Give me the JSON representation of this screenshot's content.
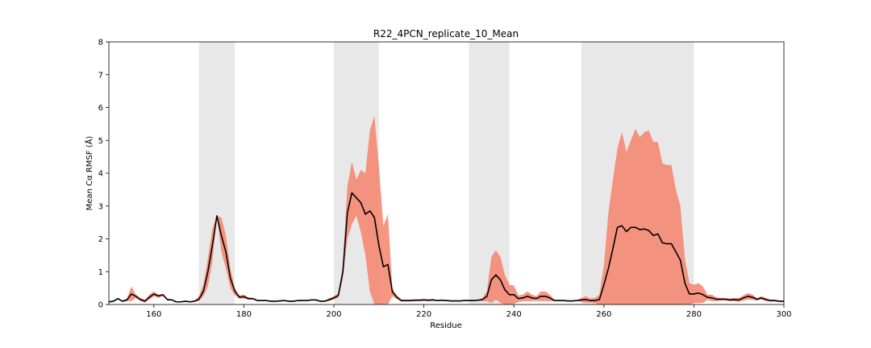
{
  "chart_data": {
    "type": "line",
    "title": "R22_4PCN_replicate_10_Mean",
    "xlabel": "Residue",
    "ylabel": "Mean Cα RMSF (Å)",
    "xlim": [
      150,
      300
    ],
    "ylim": [
      0,
      8
    ],
    "xticks": [
      160,
      180,
      200,
      220,
      240,
      260,
      280,
      300
    ],
    "yticks": [
      0,
      1,
      2,
      3,
      4,
      5,
      6,
      7,
      8
    ],
    "grid": false,
    "colors": {
      "mean_line": "#000000",
      "band": "#f4826c",
      "shade": "#d9d9d9"
    },
    "shaded_regions": [
      [
        170,
        178
      ],
      [
        200,
        210
      ],
      [
        230,
        239
      ],
      [
        255,
        280
      ]
    ],
    "series": [
      {
        "x": [
          150,
          151,
          152,
          153,
          154,
          155,
          156,
          157,
          158,
          159,
          160,
          161,
          162,
          163,
          164,
          165,
          166,
          167,
          168,
          169,
          170,
          171,
          172,
          173,
          174,
          175,
          176,
          177,
          178,
          179,
          180,
          181,
          182,
          183,
          184,
          185,
          186,
          187,
          188,
          189,
          190,
          191,
          192,
          193,
          194,
          195,
          196,
          197,
          198,
          199,
          200,
          201,
          202,
          203,
          204,
          205,
          206,
          207,
          208,
          209,
          210,
          211,
          212,
          213,
          214,
          215,
          216,
          217,
          218,
          219,
          220,
          221,
          222,
          223,
          224,
          225,
          226,
          227,
          228,
          229,
          230,
          231,
          232,
          233,
          234,
          235,
          236,
          237,
          238,
          239,
          240,
          241,
          242,
          243,
          244,
          245,
          246,
          247,
          248,
          249,
          250,
          251,
          252,
          253,
          254,
          255,
          256,
          257,
          258,
          259,
          260,
          261,
          262,
          263,
          264,
          265,
          266,
          267,
          268,
          269,
          270,
          271,
          272,
          273,
          274,
          275,
          276,
          277,
          278,
          279,
          280,
          281,
          282,
          283,
          284,
          285,
          286,
          287,
          288,
          289,
          290,
          291,
          292,
          293,
          294,
          295,
          296,
          297,
          298,
          299,
          300
        ],
        "mean": [
          0.08,
          0.1,
          0.18,
          0.1,
          0.14,
          0.32,
          0.25,
          0.15,
          0.1,
          0.22,
          0.32,
          0.26,
          0.3,
          0.15,
          0.14,
          0.08,
          0.08,
          0.1,
          0.08,
          0.1,
          0.16,
          0.4,
          1.0,
          1.8,
          2.7,
          2.1,
          1.6,
          0.8,
          0.4,
          0.22,
          0.24,
          0.18,
          0.18,
          0.12,
          0.12,
          0.12,
          0.1,
          0.1,
          0.11,
          0.12,
          0.1,
          0.1,
          0.12,
          0.12,
          0.12,
          0.14,
          0.14,
          0.1,
          0.1,
          0.15,
          0.2,
          0.28,
          1.0,
          2.8,
          3.4,
          3.25,
          3.1,
          2.75,
          2.85,
          2.65,
          1.8,
          1.15,
          1.22,
          0.38,
          0.22,
          0.12,
          0.12,
          0.12,
          0.13,
          0.13,
          0.14,
          0.13,
          0.14,
          0.12,
          0.13,
          0.12,
          0.11,
          0.11,
          0.11,
          0.12,
          0.12,
          0.12,
          0.13,
          0.15,
          0.25,
          0.75,
          0.9,
          0.75,
          0.45,
          0.3,
          0.3,
          0.18,
          0.2,
          0.25,
          0.2,
          0.18,
          0.25,
          0.25,
          0.2,
          0.12,
          0.12,
          0.12,
          0.11,
          0.11,
          0.12,
          0.14,
          0.15,
          0.12,
          0.12,
          0.15,
          0.6,
          1.1,
          1.7,
          2.35,
          2.4,
          2.22,
          2.35,
          2.35,
          2.28,
          2.3,
          2.25,
          2.1,
          2.15,
          1.88,
          1.85,
          1.85,
          1.6,
          1.35,
          0.65,
          0.32,
          0.32,
          0.35,
          0.3,
          0.22,
          0.2,
          0.16,
          0.16,
          0.16,
          0.14,
          0.15,
          0.14,
          0.2,
          0.25,
          0.22,
          0.16,
          0.2,
          0.15,
          0.12,
          0.12,
          0.1,
          0.1
        ],
        "upper": [
          0.1,
          0.12,
          0.2,
          0.12,
          0.18,
          0.55,
          0.3,
          0.2,
          0.15,
          0.3,
          0.4,
          0.3,
          0.32,
          0.18,
          0.16,
          0.1,
          0.1,
          0.12,
          0.1,
          0.12,
          0.25,
          0.6,
          1.4,
          2.3,
          2.7,
          2.65,
          2.1,
          1.1,
          0.5,
          0.28,
          0.3,
          0.22,
          0.2,
          0.14,
          0.14,
          0.14,
          0.12,
          0.12,
          0.13,
          0.14,
          0.12,
          0.12,
          0.14,
          0.14,
          0.14,
          0.16,
          0.16,
          0.12,
          0.12,
          0.2,
          0.25,
          0.35,
          1.2,
          3.6,
          4.35,
          3.8,
          4.1,
          4.0,
          5.3,
          5.75,
          4.2,
          2.4,
          2.75,
          0.5,
          0.28,
          0.15,
          0.15,
          0.15,
          0.16,
          0.16,
          0.17,
          0.16,
          0.17,
          0.14,
          0.15,
          0.14,
          0.13,
          0.13,
          0.13,
          0.14,
          0.14,
          0.14,
          0.15,
          0.2,
          0.4,
          1.45,
          1.65,
          1.45,
          0.9,
          0.6,
          0.58,
          0.28,
          0.3,
          0.4,
          0.3,
          0.25,
          0.4,
          0.4,
          0.3,
          0.14,
          0.14,
          0.14,
          0.13,
          0.13,
          0.14,
          0.2,
          0.25,
          0.18,
          0.2,
          0.3,
          1.2,
          2.8,
          3.8,
          4.75,
          5.25,
          4.65,
          5.0,
          5.35,
          5.1,
          5.25,
          5.3,
          4.95,
          4.95,
          4.3,
          4.25,
          4.25,
          3.5,
          3.0,
          1.4,
          0.65,
          0.6,
          0.65,
          0.55,
          0.3,
          0.3,
          0.22,
          0.2,
          0.2,
          0.18,
          0.2,
          0.2,
          0.28,
          0.35,
          0.3,
          0.2,
          0.25,
          0.2,
          0.15,
          0.15,
          0.12,
          0.12
        ],
        "lower": [
          0.06,
          0.08,
          0.15,
          0.08,
          0.1,
          0.1,
          0.2,
          0.1,
          0.06,
          0.15,
          0.25,
          0.2,
          0.25,
          0.12,
          0.12,
          0.06,
          0.06,
          0.08,
          0.06,
          0.08,
          0.1,
          0.25,
          0.55,
          1.3,
          2.7,
          1.6,
          1.1,
          0.5,
          0.28,
          0.18,
          0.18,
          0.14,
          0.15,
          0.1,
          0.1,
          0.1,
          0.08,
          0.08,
          0.09,
          0.1,
          0.08,
          0.08,
          0.1,
          0.1,
          0.1,
          0.12,
          0.12,
          0.08,
          0.08,
          0.1,
          0.15,
          0.2,
          0.8,
          2.0,
          2.45,
          2.7,
          2.2,
          1.5,
          0.4,
          0.0,
          0.0,
          0.0,
          0.0,
          0.25,
          0.16,
          0.09,
          0.09,
          0.09,
          0.1,
          0.1,
          0.11,
          0.1,
          0.11,
          0.1,
          0.11,
          0.1,
          0.09,
          0.09,
          0.09,
          0.1,
          0.1,
          0.1,
          0.11,
          0.1,
          0.1,
          0.05,
          0.15,
          0.05,
          0.0,
          0.0,
          0.02,
          0.08,
          0.1,
          0.1,
          0.1,
          0.11,
          0.1,
          0.1,
          0.1,
          0.1,
          0.1,
          0.1,
          0.09,
          0.09,
          0.1,
          0.08,
          0.05,
          0.06,
          0.04,
          0.0,
          0.0,
          0.0,
          0.0,
          0.0,
          0.0,
          0.0,
          0.0,
          0.0,
          0.0,
          0.0,
          0.0,
          0.0,
          0.0,
          0.0,
          0.0,
          0.0,
          0.0,
          0.0,
          0.0,
          0.0,
          0.04,
          0.05,
          0.05,
          0.14,
          0.1,
          0.1,
          0.12,
          0.12,
          0.1,
          0.1,
          0.08,
          0.12,
          0.15,
          0.14,
          0.12,
          0.15,
          0.1,
          0.09,
          0.09,
          0.08,
          0.08
        ]
      }
    ]
  }
}
